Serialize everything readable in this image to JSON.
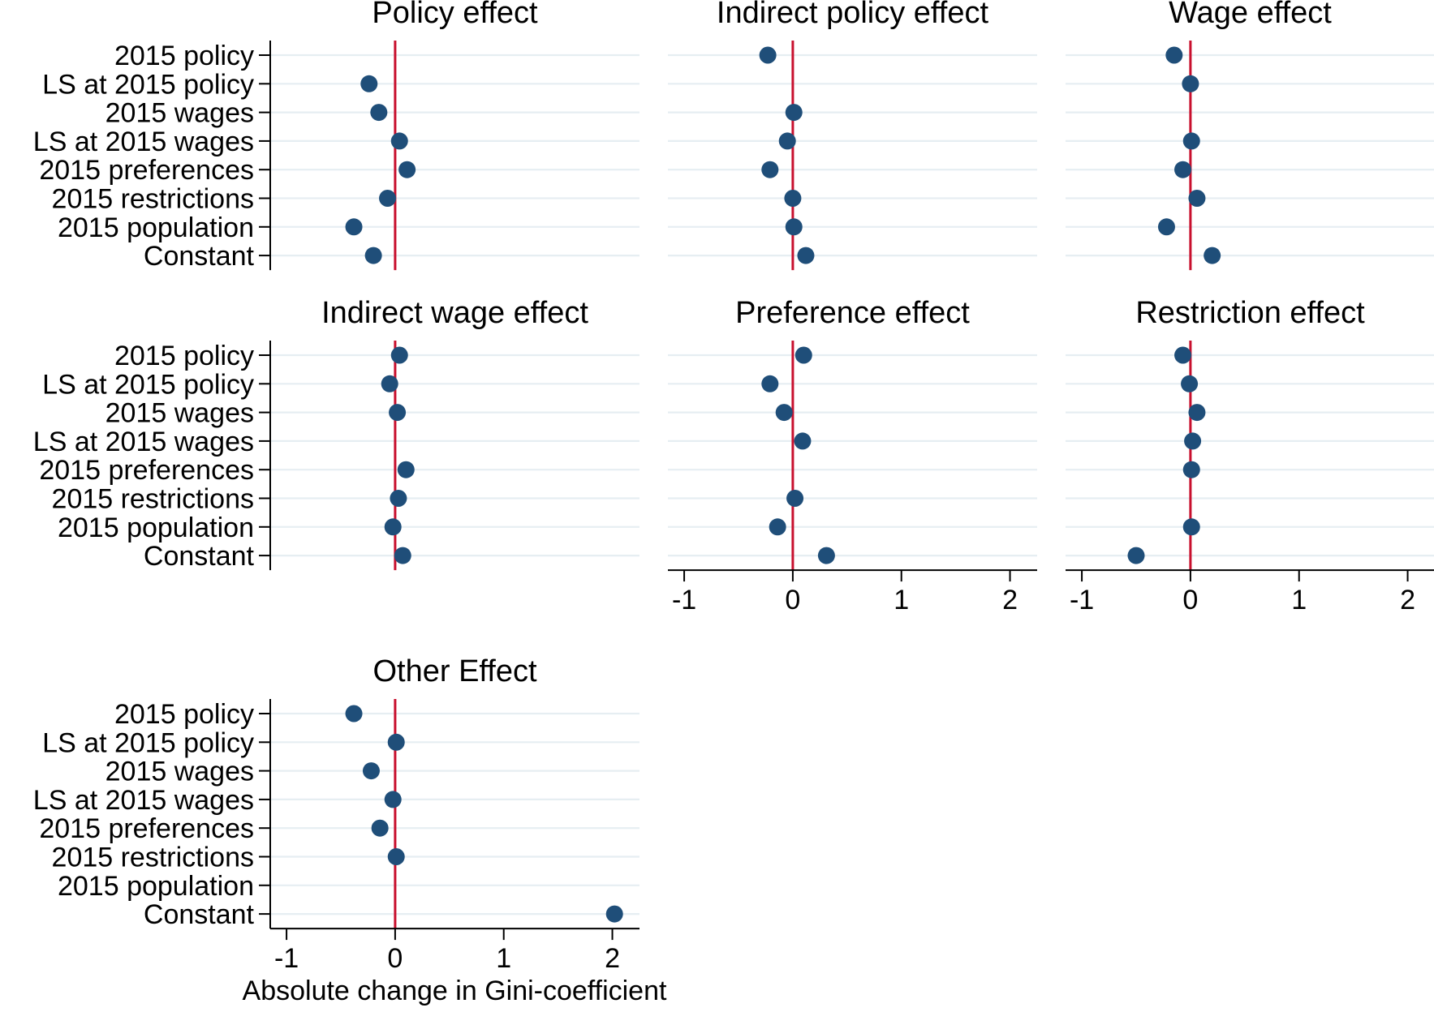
{
  "figure": {
    "xlabel": "Absolute change in Gini-coefficient",
    "colors": {
      "marker": "#1f4e79",
      "zero_line": "#c8102e",
      "grid": "#e6eef2",
      "axis": "#000000"
    }
  },
  "chart_data": [
    {
      "type": "scatter",
      "title": "Policy effect",
      "categories": [
        "2015 policy",
        "LS at 2015 policy",
        "2015 wages",
        "LS at 2015 wages",
        "2015 preferences",
        "2015 restrictions",
        "2015 population",
        "Constant"
      ],
      "values": [
        null,
        -0.24,
        -0.15,
        0.04,
        0.11,
        -0.07,
        -0.38,
        -0.2
      ],
      "xlim": [
        -1.15,
        2.25
      ],
      "xticks": [],
      "reference_line": 0,
      "grid": true
    },
    {
      "type": "scatter",
      "title": "Indirect policy effect",
      "categories": [
        "2015 policy",
        "LS at 2015 policy",
        "2015 wages",
        "LS at 2015 wages",
        "2015 preferences",
        "2015 restrictions",
        "2015 population",
        "Constant"
      ],
      "values": [
        -0.23,
        null,
        0.01,
        -0.05,
        -0.21,
        0.0,
        0.01,
        0.12
      ],
      "xlim": [
        -1.15,
        2.25
      ],
      "xticks": [],
      "reference_line": 0,
      "grid": true
    },
    {
      "type": "scatter",
      "title": "Wage effect",
      "categories": [
        "2015 policy",
        "LS at 2015 policy",
        "2015 wages",
        "LS at 2015 wages",
        "2015 preferences",
        "2015 restrictions",
        "2015 population",
        "Constant"
      ],
      "values": [
        -0.15,
        0.0,
        null,
        0.01,
        -0.07,
        0.06,
        -0.22,
        0.2
      ],
      "xlim": [
        -1.15,
        2.25
      ],
      "xticks": [],
      "reference_line": 0,
      "grid": true
    },
    {
      "type": "scatter",
      "title": "Indirect wage effect",
      "categories": [
        "2015 policy",
        "LS at 2015 policy",
        "2015 wages",
        "LS at 2015 wages",
        "2015 preferences",
        "2015 restrictions",
        "2015 population",
        "Constant"
      ],
      "values": [
        0.04,
        -0.05,
        0.02,
        null,
        0.1,
        0.03,
        -0.02,
        0.07
      ],
      "xlim": [
        -1.15,
        2.25
      ],
      "xticks": [],
      "reference_line": 0,
      "grid": true
    },
    {
      "type": "scatter",
      "title": "Preference effect",
      "categories": [
        "2015 policy",
        "LS at 2015 policy",
        "2015 wages",
        "LS at 2015 wages",
        "2015 preferences",
        "2015 restrictions",
        "2015 population",
        "Constant"
      ],
      "values": [
        0.1,
        -0.21,
        -0.08,
        0.09,
        null,
        0.02,
        -0.14,
        0.31
      ],
      "xlim": [
        -1.15,
        2.25
      ],
      "xticks": [
        -1,
        0,
        1,
        2
      ],
      "reference_line": 0,
      "grid": true
    },
    {
      "type": "scatter",
      "title": "Restriction effect",
      "categories": [
        "2015 policy",
        "LS at 2015 policy",
        "2015 wages",
        "LS at 2015 wages",
        "2015 preferences",
        "2015 restrictions",
        "2015 population",
        "Constant"
      ],
      "values": [
        -0.07,
        -0.01,
        0.06,
        0.02,
        0.01,
        null,
        0.01,
        -0.5
      ],
      "xlim": [
        -1.15,
        2.25
      ],
      "xticks": [
        -1,
        0,
        1,
        2
      ],
      "reference_line": 0,
      "grid": true
    },
    {
      "type": "scatter",
      "title": "Other Effect",
      "categories": [
        "2015 policy",
        "LS at 2015 policy",
        "2015 wages",
        "LS at 2015 wages",
        "2015 preferences",
        "2015 restrictions",
        "2015 population",
        "Constant"
      ],
      "values": [
        -0.38,
        0.01,
        -0.22,
        -0.02,
        -0.14,
        0.01,
        null,
        2.02
      ],
      "xlim": [
        -1.15,
        2.25
      ],
      "xticks": [
        -1,
        0,
        1,
        2
      ],
      "reference_line": 0,
      "grid": true
    }
  ]
}
